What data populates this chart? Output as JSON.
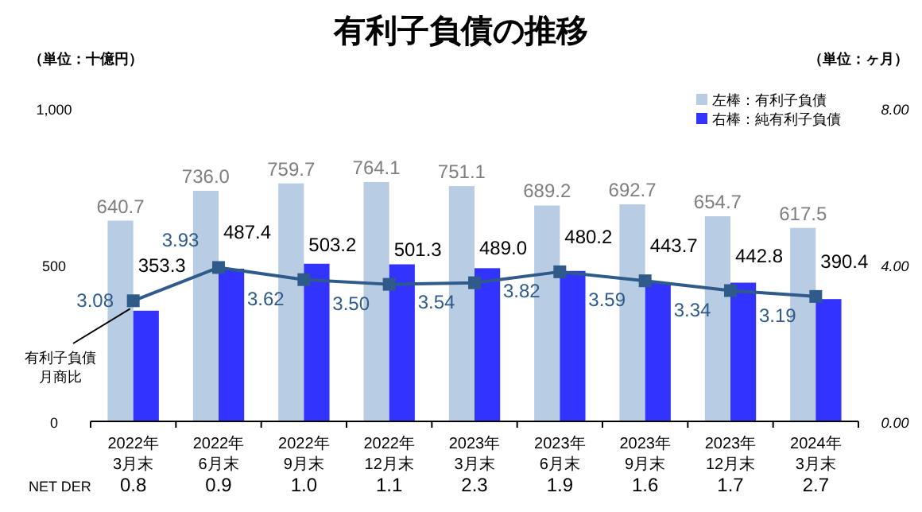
{
  "chart_data": {
    "type": "bar",
    "title": "有利子負債の推移",
    "ylabel": "（単位：十億円）",
    "y2label": "（単位：ヶ月）",
    "categories": [
      "2022年\n3月末",
      "2022年\n6月末",
      "2022年\n9月末",
      "2022年\n12月末",
      "2023年\n3月末",
      "2023年\n6月末",
      "2023年\n9月末",
      "2023年\n12月末",
      "2024年\n3月末"
    ],
    "series": [
      {
        "name": "左棒：有利子負債",
        "color": "#b8cce4",
        "values": [
          640.7,
          736.0,
          759.7,
          764.1,
          751.1,
          689.2,
          692.7,
          654.7,
          617.5
        ],
        "value_labels": [
          "640.7",
          "736.0",
          "759.7",
          "764.1",
          "751.1",
          "689.2",
          "692.7",
          "654.7",
          "617.5"
        ]
      },
      {
        "name": "右棒：純有利子負債",
        "color": "#3333ff",
        "values": [
          353.3,
          487.4,
          503.2,
          501.3,
          489.0,
          480.2,
          443.7,
          442.8,
          390.4
        ],
        "value_labels": [
          "353.3",
          "487.4",
          "503.2",
          "501.3",
          "489.0",
          "480.2",
          "443.7",
          "442.8",
          "390.4"
        ]
      },
      {
        "name": "有利子負債月商比",
        "type": "line",
        "axis": "y2",
        "color": "#2e5b8a",
        "marker": "square",
        "values": [
          3.08,
          3.93,
          3.62,
          3.5,
          3.54,
          3.82,
          3.59,
          3.34,
          3.19
        ],
        "value_labels": [
          "3.08",
          "3.93",
          "3.62",
          "3.50",
          "3.54",
          "3.82",
          "3.59",
          "3.34",
          "3.19"
        ]
      }
    ],
    "ylim": [
      0,
      1000
    ],
    "yticks": [
      0,
      500,
      {
        "value": 1000,
        "label": "1,000"
      }
    ],
    "y2lim": [
      0,
      8
    ],
    "y2ticks": [
      {
        "value": 0,
        "label": "0.00"
      },
      {
        "value": 4,
        "label": "4.00"
      },
      {
        "value": 8,
        "label": "8.00"
      }
    ],
    "legend": "top right",
    "grid": false,
    "annotations": [
      "NET DER",
      "0.8",
      "0.9",
      "1.0",
      "1.1",
      "2.3",
      "1.9",
      "1.6",
      "1.7",
      "2.7"
    ]
  }
}
